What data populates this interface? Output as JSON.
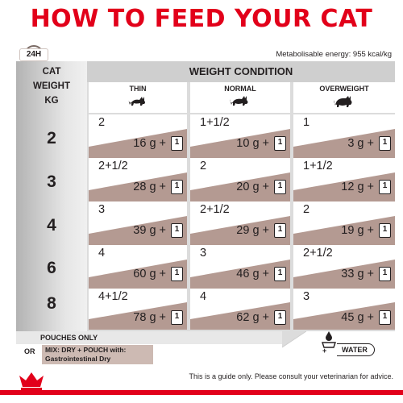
{
  "title": "HOW TO FEED YOUR CAT",
  "badge": "24H",
  "energy": "Metabolisable energy: 955 kcal/kg",
  "cat_weight_header": [
    "CAT",
    "WEIGHT",
    "KG"
  ],
  "weight_condition_header": "WEIGHT CONDITION",
  "columns": [
    "THIN",
    "NORMAL",
    "OVERWEIGHT"
  ],
  "rows": [
    {
      "weight": "2",
      "cells": [
        {
          "pouches": "2",
          "dry": "16 g",
          "plus": "+1"
        },
        {
          "pouches": "1+1/2",
          "dry": "10 g",
          "plus": "+1"
        },
        {
          "pouches": "1",
          "dry": "3 g",
          "plus": "+1"
        }
      ]
    },
    {
      "weight": "3",
      "cells": [
        {
          "pouches": "2+1/2",
          "dry": "28 g",
          "plus": "+1"
        },
        {
          "pouches": "2",
          "dry": "20 g",
          "plus": "+1"
        },
        {
          "pouches": "1+1/2",
          "dry": "12 g",
          "plus": "+1"
        }
      ]
    },
    {
      "weight": "4",
      "cells": [
        {
          "pouches": "3",
          "dry": "39 g",
          "plus": "+1"
        },
        {
          "pouches": "2+1/2",
          "dry": "29 g",
          "plus": "+1"
        },
        {
          "pouches": "2",
          "dry": "19 g",
          "plus": "+1"
        }
      ]
    },
    {
      "weight": "6",
      "cells": [
        {
          "pouches": "4",
          "dry": "60 g",
          "plus": "+1"
        },
        {
          "pouches": "3",
          "dry": "46 g",
          "plus": "+1"
        },
        {
          "pouches": "2+1/2",
          "dry": "33 g",
          "plus": "+1"
        }
      ]
    },
    {
      "weight": "8",
      "cells": [
        {
          "pouches": "4+1/2",
          "dry": "78 g",
          "plus": "+1"
        },
        {
          "pouches": "4",
          "dry": "62 g",
          "plus": "+1"
        },
        {
          "pouches": "3",
          "dry": "45 g",
          "plus": "+1"
        }
      ]
    }
  ],
  "pouch_icon_label": "1",
  "legend": {
    "pouches_only": "POUCHES ONLY",
    "or": "OR",
    "mix_line1": "MIX: DRY + POUCH with:",
    "mix_line2": "Gastrointestinal Dry",
    "water_plus": "+",
    "water": "WATER"
  },
  "footer": "This is a guide only. Please consult your veterinarian for advice.",
  "colors": {
    "title_red": "#e2001a",
    "wedge_mauve": "#b49a92",
    "mix_pink": "#cdbab3"
  },
  "icons": {
    "cat_thin": "cat-silhouette-icon",
    "cat_normal": "cat-silhouette-icon",
    "cat_overweight": "cat-silhouette-icon",
    "clock": "clock-icon",
    "water_bowl": "water-bowl-icon",
    "pouch": "pouch-icon"
  }
}
